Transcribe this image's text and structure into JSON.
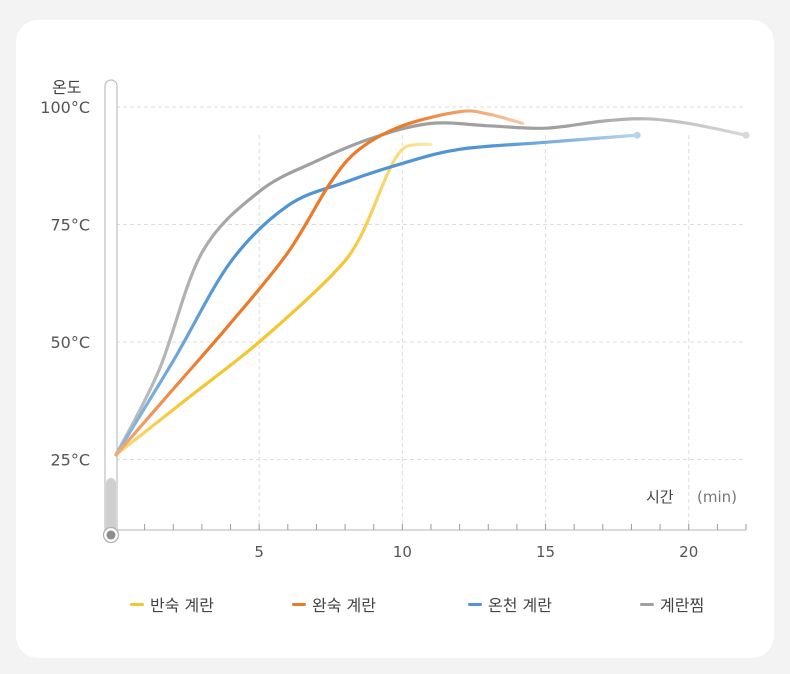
{
  "chart_data": {
    "type": "line",
    "ylabel": "온도",
    "xlabel": "시간",
    "xunit": "(min)",
    "xlim": [
      0,
      22
    ],
    "ylim": [
      10,
      110
    ],
    "xticks": [
      {
        "v": 5,
        "label": "5"
      },
      {
        "v": 10,
        "label": "10"
      },
      {
        "v": 15,
        "label": "15"
      },
      {
        "v": 20,
        "label": "20"
      }
    ],
    "yticks": [
      {
        "v": 25,
        "label": "25°C"
      },
      {
        "v": 50,
        "label": "50°C"
      },
      {
        "v": 75,
        "label": "75°C"
      },
      {
        "v": 100,
        "label": "100°C"
      }
    ],
    "series": [
      {
        "name": "반숙 계란",
        "color": "#f5c631",
        "x": [
          0,
          2.5,
          5,
          7.5,
          8.5,
          9.5,
          10,
          10.5,
          11
        ],
        "y": [
          26,
          38,
          50,
          64,
          72,
          86,
          91,
          92,
          92
        ]
      },
      {
        "name": "완숙 계란",
        "color": "#ec7a2b",
        "x": [
          0,
          2,
          4,
          6,
          7.5,
          8.5,
          10,
          12,
          13,
          14.2
        ],
        "y": [
          26,
          40,
          54,
          69,
          84,
          91,
          96,
          99,
          98.5,
          96.5
        ]
      },
      {
        "name": "온천 계란",
        "color": "#4f94d3",
        "x": [
          0,
          2,
          4,
          6,
          8,
          10,
          12,
          15,
          18.2
        ],
        "y": [
          26,
          46,
          67,
          79,
          84,
          88,
          91,
          92.5,
          94
        ]
      },
      {
        "name": "계란찜",
        "color": "#a0a0a0",
        "x": [
          0,
          1.5,
          3,
          5,
          7,
          9,
          11,
          13,
          15,
          17,
          18.5,
          20,
          22
        ],
        "y": [
          26,
          44,
          69,
          82,
          88.5,
          93.5,
          96.5,
          96,
          95.5,
          97,
          97.5,
          96.5,
          94
        ]
      }
    ]
  }
}
